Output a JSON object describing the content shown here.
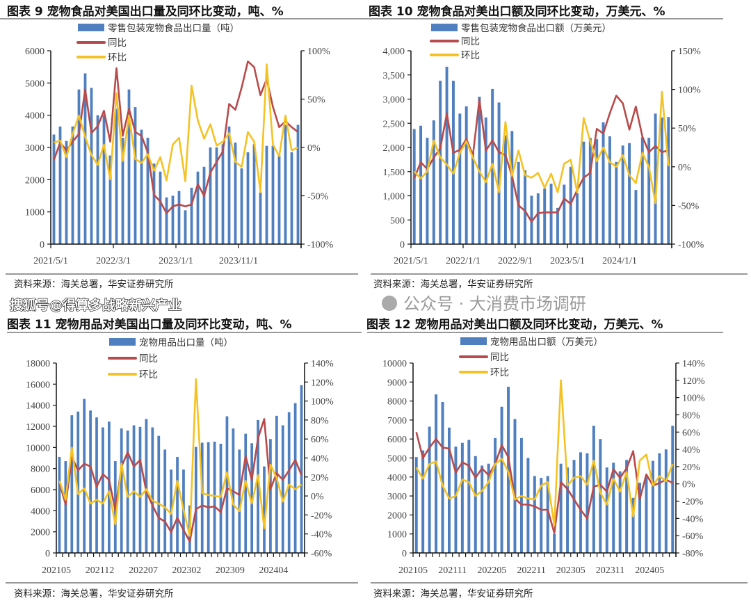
{
  "colors": {
    "bar": "#4f7fbf",
    "yoy": "#b84a4b",
    "mom": "#f4c223",
    "axis": "#111111"
  },
  "watermarks": {
    "top": "搜狐号@得算多战略新兴产业",
    "bottom": "公众号 · 大消费市场调研"
  },
  "chart_data": [
    {
      "type": "bar+line",
      "title": "图表 9 宠物食品对美国出口量及同环比变动，吨、%",
      "legend": [
        "零售包装宠物食品出口量（吨）",
        "同比",
        "环比"
      ],
      "source": "资料来源：海关总署，华安证券研究所",
      "categories": [
        "2021/5/1",
        "2021/6/1",
        "2021/7/1",
        "2021/8/1",
        "2021/9/1",
        "2021/10/1",
        "2021/11/1",
        "2021/12/1",
        "2022/1/1",
        "2022/2/1",
        "2022/3/1",
        "2022/4/1",
        "2022/5/1",
        "2022/6/1",
        "2022/7/1",
        "2022/8/1",
        "2022/9/1",
        "2022/10/1",
        "2022/11/1",
        "2022/12/1",
        "2023/1/1",
        "2023/2/1",
        "2023/3/1",
        "2023/4/1",
        "2023/5/1",
        "2023/6/1",
        "2023/7/1",
        "2023/8/1",
        "2023/9/1",
        "2023/10/1",
        "2023/11/1",
        "2023/12/1",
        "2024/1/1",
        "2024/2/1",
        "2024/3/1",
        "2024/4/1",
        "2024/5/1",
        "2024/6/1",
        "2024/7/1",
        "2024/8/1"
      ],
      "xtick_labels": [
        "2021/5/1",
        "2022/3/1",
        "2023/1/1",
        "2023/11/1"
      ],
      "ylim_left": [
        0,
        6000
      ],
      "left_ticks": [
        "0",
        "1000",
        "2000",
        "3000",
        "4000",
        "5000",
        "6000"
      ],
      "ylim_right": [
        -100,
        100
      ],
      "right_ticks": [
        "-100%",
        "-50%",
        "0%",
        "50%",
        "100%"
      ],
      "series": [
        {
          "name": "零售包装宠物食品出口量（吨）",
          "kind": "bar",
          "axis": "left",
          "values": [
            3400,
            3650,
            3200,
            3650,
            4800,
            5300,
            4850,
            4000,
            4000,
            2750,
            4200,
            3300,
            4800,
            4250,
            3550,
            3300,
            2500,
            2250,
            1450,
            1500,
            1650,
            1050,
            1750,
            2250,
            2400,
            3000,
            3000,
            3100,
            3650,
            3150,
            2350,
            2850,
            3100,
            1600,
            3050,
            3050,
            2750,
            3700,
            2850,
            3700
          ]
        },
        {
          "name": "同比",
          "kind": "line",
          "axis": "right",
          "values": [
            -13,
            5,
            -3,
            6,
            14,
            60,
            15,
            22,
            38,
            6,
            82,
            12,
            40,
            16,
            12,
            -5,
            -49,
            -56,
            -68,
            -61,
            -59,
            -61,
            -59,
            -38,
            -50,
            -26,
            -15,
            -4,
            45,
            39,
            62,
            89,
            83,
            54,
            71,
            42,
            21,
            27,
            21,
            16
          ]
        },
        {
          "name": "环比",
          "kind": "line",
          "axis": "right",
          "values": [
            5,
            7,
            -10,
            14,
            33,
            11,
            -8,
            -18,
            3,
            -33,
            56,
            -14,
            33,
            -12,
            -16,
            -7,
            -24,
            -10,
            -34,
            3,
            10,
            -35,
            64,
            28,
            9,
            24,
            2,
            6,
            15,
            -15,
            -20,
            16,
            6,
            -46,
            86,
            3,
            -9,
            33,
            -3,
            0
          ]
        }
      ]
    },
    {
      "type": "bar+line",
      "title": "图表 10 宠物食品对美出口额及同环比变动，万美元、%",
      "legend": [
        "零售包装宠物食品出口额（万美元）",
        "同比",
        "环比"
      ],
      "source": "资料来源：海关总署，华安证券研究所",
      "categories": [
        "2021/5/1",
        "2021/6/1",
        "2021/7/1",
        "2021/8/1",
        "2021/9/1",
        "2021/10/1",
        "2021/11/1",
        "2021/12/1",
        "2022/1/1",
        "2022/2/1",
        "2022/3/1",
        "2022/4/1",
        "2022/5/1",
        "2022/6/1",
        "2022/7/1",
        "2022/8/1",
        "2022/9/1",
        "2022/10/1",
        "2022/11/1",
        "2022/12/1",
        "2023/1/1",
        "2023/2/1",
        "2023/3/1",
        "2023/4/1",
        "2023/5/1",
        "2023/6/1",
        "2023/7/1",
        "2023/8/1",
        "2023/9/1",
        "2023/10/1",
        "2023/11/1",
        "2023/12/1",
        "2024/1/1",
        "2024/2/1",
        "2024/3/1",
        "2024/4/1",
        "2024/5/1",
        "2024/6/1",
        "2024/7/1",
        "2024/8/1"
      ],
      "xtick_labels": [
        "2021/5/1",
        "2022/1/1",
        "2022/9/1",
        "2023/5/1",
        "2024/1/1"
      ],
      "ylim_left": [
        0,
        4000
      ],
      "left_ticks": [
        "0",
        "500",
        "1,000",
        "1,500",
        "2,000",
        "2,500",
        "3,000",
        "3,500",
        "4,000"
      ],
      "ylim_right": [
        -100,
        150
      ],
      "right_ticks": [
        "-100%",
        "-50%",
        "0%",
        "50%",
        "100%",
        "150%"
      ],
      "series": [
        {
          "name": "零售包装宠物食品出口额（万美元）",
          "kind": "bar",
          "axis": "left",
          "values": [
            2380,
            2450,
            2200,
            2560,
            3380,
            3670,
            3380,
            2700,
            2850,
            1900,
            3050,
            2620,
            3210,
            2930,
            2250,
            2340,
            1700,
            1530,
            1000,
            1050,
            1150,
            1250,
            750,
            1230,
            1600,
            1050,
            2120,
            2200,
            2170,
            2520,
            2230,
            1700,
            2040,
            2090,
            1120,
            2210,
            2200,
            2700,
            2620,
            2630
          ]
        },
        {
          "name": "同比",
          "kind": "line",
          "axis": "right",
          "values": [
            -15,
            6,
            -3,
            12,
            24,
            69,
            18,
            22,
            36,
            15,
            87,
            21,
            34,
            19,
            15,
            -12,
            -50,
            -57,
            -71,
            -60,
            -59,
            -59,
            -59,
            -41,
            -48,
            -30,
            -14,
            -8,
            49,
            43,
            69,
            92,
            82,
            48,
            78,
            39,
            19,
            27,
            19,
            21
          ]
        },
        {
          "name": "环比",
          "kind": "line",
          "axis": "right",
          "values": [
            -6,
            -15,
            -6,
            34,
            12,
            3,
            -9,
            18,
            33,
            12,
            -6,
            -20,
            4,
            -33,
            58,
            -12,
            21,
            -11,
            -14,
            -8,
            -27,
            -9,
            -33,
            4,
            9,
            -33,
            63,
            33,
            7,
            25,
            6,
            0,
            15,
            -11,
            -21,
            18,
            0,
            -47,
            97,
            1
          ]
        }
      ]
    },
    {
      "type": "bar+line",
      "title": "图表 11 宠物用品对美国出口量及同环比变动，吨、%",
      "legend": [
        "宠物用品出口量（吨）",
        "同比",
        "环比"
      ],
      "source": "资料来源：海关总署，华安证券研究所",
      "categories": [
        "202105",
        "202106",
        "202107",
        "202108",
        "202109",
        "202110",
        "202111",
        "202112",
        "202201",
        "202202",
        "202203",
        "202204",
        "202205",
        "202206",
        "202207",
        "202208",
        "202209",
        "202210",
        "202211",
        "202212",
        "202301",
        "202302",
        "202303",
        "202304",
        "202305",
        "202306",
        "202307",
        "202308",
        "202309",
        "202310",
        "202311",
        "202312",
        "202401",
        "202402",
        "202403",
        "202404",
        "202405",
        "202406",
        "202407",
        "202408"
      ],
      "xtick_labels": [
        "202105",
        "202112",
        "202207",
        "202302",
        "202309",
        "202404"
      ],
      "ylim_left": [
        0,
        18000
      ],
      "left_ticks": [
        "0",
        "2000",
        "4000",
        "6000",
        "8000",
        "10000",
        "12000",
        "14000",
        "16000",
        "18000"
      ],
      "ylim_right": [
        -60,
        140
      ],
      "right_ticks": [
        "-60%",
        "-40%",
        "-20%",
        "0%",
        "20%",
        "40%",
        "60%",
        "80%",
        "100%",
        "120%",
        "140%"
      ],
      "series": [
        {
          "name": "宠物用品出口量（吨）",
          "kind": "bar",
          "axis": "left",
          "values": [
            9100,
            8700,
            13050,
            13400,
            14600,
            13500,
            12850,
            11900,
            12450,
            8700,
            11800,
            11600,
            12100,
            11950,
            12700,
            11900,
            11100,
            9800,
            7900,
            9100,
            7900,
            4500,
            10050,
            10450,
            10500,
            10550,
            10350,
            12950,
            11800,
            9800,
            11300,
            10400,
            12600,
            8200,
            10800,
            13000,
            12100,
            13350,
            14200,
            15900
          ]
        },
        {
          "name": "同比",
          "kind": "line",
          "axis": "right",
          "values": [
            14,
            -9,
            41,
            27,
            34,
            31,
            10,
            23,
            17,
            -15,
            31,
            46,
            31,
            38,
            5,
            -10,
            -23,
            -27,
            -38,
            -23,
            -36,
            -48,
            -14,
            -10,
            -12,
            -11,
            -17,
            8,
            5,
            1,
            42,
            17,
            61,
            81,
            7,
            24,
            17,
            27,
            38,
            22
          ]
        },
        {
          "name": "环比",
          "kind": "line",
          "axis": "right",
          "values": [
            16,
            -4,
            51,
            2,
            8,
            -8,
            -4,
            -8,
            5,
            -30,
            34,
            -1,
            5,
            -1,
            7,
            -5,
            -8,
            -12,
            -19,
            16,
            -15,
            -42,
            123,
            3,
            1,
            0,
            -1,
            25,
            -9,
            -16,
            16,
            -8,
            22,
            -34,
            33,
            19,
            -6,
            12,
            7,
            12
          ]
        }
      ]
    },
    {
      "type": "bar+line",
      "title": "图表 12 宠物用品对美出口额及同环比变动，万美元、%",
      "legend": [
        "宠物用品出口额（万美元）",
        "同比",
        "环比"
      ],
      "source": "资料来源：海关总署，华安证券研究所",
      "categories": [
        "202105",
        "202106",
        "202107",
        "202108",
        "202109",
        "202110",
        "202111",
        "202112",
        "202201",
        "202202",
        "202203",
        "202204",
        "202205",
        "202206",
        "202207",
        "202208",
        "202209",
        "202210",
        "202211",
        "202212",
        "202301",
        "202302",
        "202303",
        "202304",
        "202305",
        "202306",
        "202307",
        "202308",
        "202309",
        "202310",
        "202311",
        "202312",
        "202401",
        "202402",
        "202403",
        "202404",
        "202405",
        "202406",
        "202407",
        "202408"
      ],
      "xtick_labels": [
        "202105",
        "202111",
        "202205",
        "202211",
        "202305",
        "202311",
        "202405"
      ],
      "ylim_left": [
        0,
        10000
      ],
      "left_ticks": [
        "0",
        "1000",
        "2000",
        "3000",
        "4000",
        "5000",
        "6000",
        "7000",
        "8000",
        "9000",
        "10000"
      ],
      "ylim_right": [
        -80,
        140
      ],
      "right_ticks": [
        "-80%",
        "-60%",
        "-40%",
        "-20%",
        "0%",
        "20%",
        "40%",
        "60%",
        "80%",
        "100%",
        "120%",
        "140%"
      ],
      "series": [
        {
          "name": "宠物用品出口额（万美元）",
          "kind": "bar",
          "axis": "left",
          "values": [
            5050,
            5400,
            6650,
            8350,
            7950,
            6600,
            5600,
            5800,
            5950,
            5100,
            4600,
            4700,
            6050,
            7700,
            8750,
            7050,
            6050,
            5000,
            4050,
            3950,
            4050,
            1000,
            4700,
            4500,
            4900,
            5300,
            5250,
            6700,
            6000,
            4500,
            4750,
            4300,
            4900,
            2900,
            3700,
            4000,
            4850,
            5250,
            5450,
            6700
          ]
        },
        {
          "name": "同比",
          "kind": "line",
          "axis": "right",
          "values": [
            60,
            30,
            42,
            52,
            42,
            41,
            13,
            25,
            21,
            7,
            18,
            10,
            23,
            45,
            31,
            -17,
            -24,
            -24,
            -26,
            -30,
            -30,
            -57,
            2,
            -6,
            -18,
            -30,
            -40,
            -3,
            -1,
            -9,
            17,
            7,
            18,
            38,
            -18,
            11,
            -2,
            1,
            5,
            1
          ]
        },
        {
          "name": "环比",
          "kind": "line",
          "axis": "right",
          "values": [
            19,
            6,
            23,
            26,
            -2,
            -17,
            -14,
            5,
            2,
            -14,
            -8,
            2,
            23,
            29,
            14,
            -18,
            -14,
            -17,
            -18,
            -2,
            2,
            -48,
            120,
            -2,
            7,
            9,
            -1,
            27,
            -10,
            -24,
            6,
            -9,
            14,
            -38,
            27,
            34,
            -2,
            9,
            3,
            23
          ]
        }
      ]
    }
  ]
}
